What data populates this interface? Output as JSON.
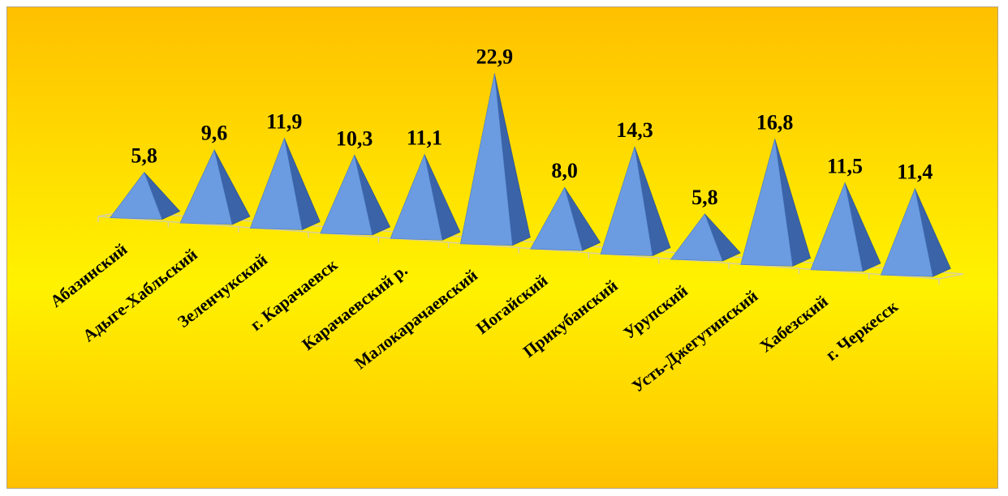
{
  "chart_data": {
    "type": "bar",
    "bar_shape": "pyramid",
    "categories": [
      "Абазинский",
      "Адыге-Хабльский",
      "Зеленчукский",
      "г. Карачаевск",
      "Карачаевский р.",
      "Малокарачаевский",
      "Ногайский",
      "Прикубанский",
      "Урупский",
      "Усть-Джегутинский",
      "Хабезский",
      "г. Черкесск"
    ],
    "values": [
      5.8,
      9.6,
      11.9,
      10.3,
      11.1,
      22.9,
      8.0,
      14.3,
      5.8,
      16.8,
      11.5,
      11.4
    ],
    "value_labels": [
      "5,8",
      "9,6",
      "11,9",
      "10,3",
      "11,1",
      "22,9",
      "8,0",
      "14,3",
      "5,8",
      "16,8",
      "11,5",
      "11,4"
    ],
    "title": "",
    "xlabel": "",
    "ylabel": "",
    "grid": false,
    "legend": "none",
    "colors": {
      "background_top": "#ffc000",
      "background_mid": "#fff200",
      "pyramid_light": "#6b9be0",
      "pyramid_dark": "#3a63a8",
      "floor_line": "#d8d0a0"
    }
  }
}
